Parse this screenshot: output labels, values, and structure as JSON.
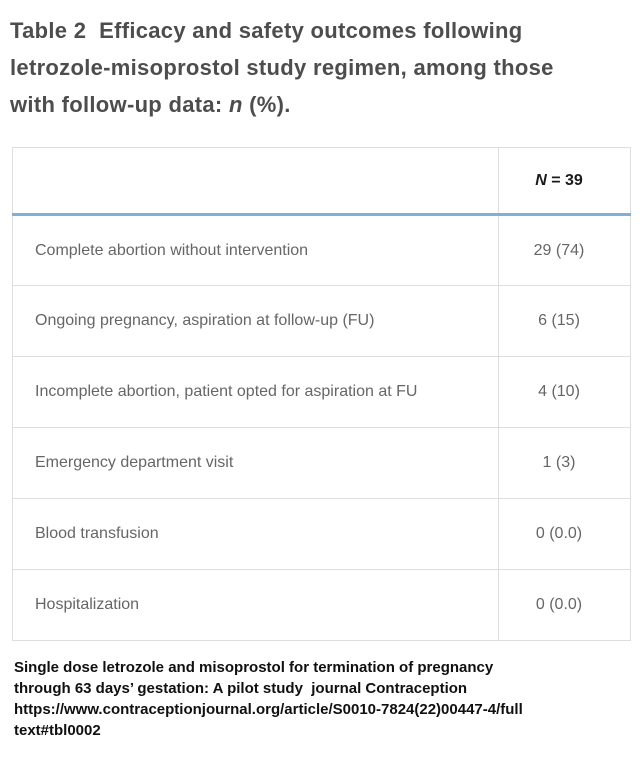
{
  "title": {
    "line1": "Table 2  Efficacy and safety outcomes following",
    "line2": "letrozole-misoprostol study regimen, among those",
    "line3_pre": "with follow-up data: ",
    "line3_italic": "n",
    "line3_post": " (%)."
  },
  "table": {
    "type": "table",
    "header": {
      "col1": "",
      "col2_italic": "N",
      "col2_rest": " = 39"
    },
    "rows": [
      {
        "label": "Complete abortion without intervention",
        "value": "29 (74)"
      },
      {
        "label": "Ongoing pregnancy, aspiration at follow-up (FU)",
        "value": "6 (15)"
      },
      {
        "label": "Incomplete abortion, patient opted for aspiration at FU",
        "value": "4 (10)"
      },
      {
        "label": "Emergency department visit",
        "value": "1 (3)"
      },
      {
        "label": "Blood transfusion",
        "value": "0 (0.0)"
      },
      {
        "label": "Hospitalization",
        "value": "0 (0.0)"
      }
    ]
  },
  "footer": {
    "lines": [
      "Single dose letrozole and misoprostol for termination of pregnancy",
      "through 63 days’ gestation: A pilot study  journal Contraception",
      "https://www.contraceptionjournal.org/article/S0010-7824(22)00447-4/full",
      "text#tbl0002"
    ]
  },
  "colors": {
    "title_text": "#4d4d4d",
    "header_rule_blue": "#7cb2d9",
    "table_border": "#dedede",
    "cell_text": "#666666",
    "header_text": "#1a1a1a",
    "footer_text": "#101010"
  }
}
